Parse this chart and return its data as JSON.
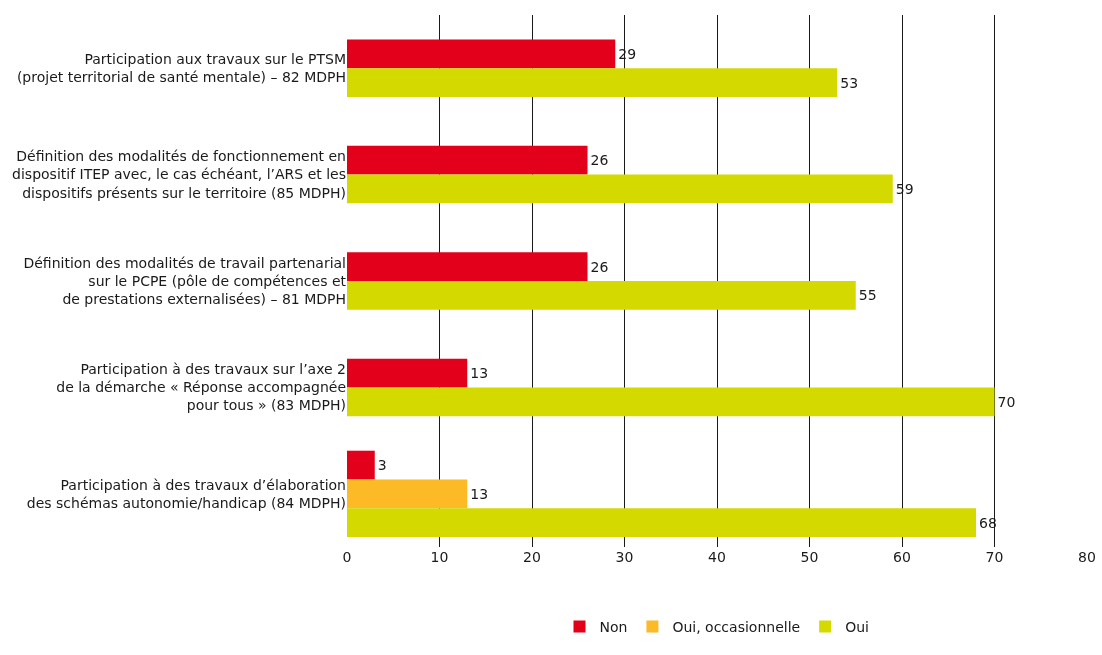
{
  "chart_data": {
    "type": "bar",
    "orientation": "horizontal",
    "categories": [
      "Participation aux travaux sur le PTSM\n(projet territorial de santé mentale) – 82 MDPH",
      "Définition des modalités de fonctionnement en\ndispositif ITEP avec, le cas échéant, l’ARS et les\ndispositifs présents sur le territoire (85 MDPH)",
      "Définition des modalités de travail partenarial\nsur le PCPE (pôle de compétences et\nde prestations externalisées) – 81 MDPH",
      "Participation à des travaux sur l’axe 2\nde la démarche « Réponse accompagnée\npour tous » (83 MDPH)",
      "Participation à des travaux d’élaboration\ndes schémas autonomie/handicap (84 MDPH)"
    ],
    "series": [
      {
        "name": "Non",
        "color": "#e2001a",
        "values": [
          29,
          26,
          26,
          13,
          3
        ]
      },
      {
        "name": "Oui, occasionnelle",
        "color": "#fbba26",
        "values": [
          null,
          null,
          null,
          null,
          13
        ]
      },
      {
        "name": "Oui",
        "color": "#d4d900",
        "values": [
          53,
          59,
          55,
          70,
          68
        ]
      }
    ],
    "xlim": [
      0,
      80
    ],
    "xticks": [
      0,
      10,
      20,
      30,
      40,
      50,
      60,
      70,
      80
    ],
    "grid": "x",
    "legend": "bottom",
    "data_labels": true
  }
}
